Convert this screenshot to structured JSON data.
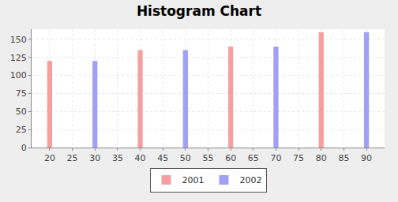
{
  "chart_data": {
    "type": "bar",
    "title": "Histogram Chart",
    "x": [
      20,
      30,
      40,
      50,
      60,
      70,
      80,
      90
    ],
    "series": [
      {
        "name": "2001",
        "color": "#f4a0a0",
        "values": [
          120,
          null,
          135,
          null,
          140,
          null,
          160,
          null
        ]
      },
      {
        "name": "2002",
        "color": "#a0a0f4",
        "values": [
          null,
          120,
          null,
          135,
          null,
          140,
          null,
          160
        ]
      }
    ],
    "xlim": [
      16,
      94
    ],
    "xticks": [
      20,
      25,
      30,
      35,
      40,
      45,
      50,
      55,
      60,
      65,
      70,
      75,
      80,
      85,
      90
    ],
    "ylim": [
      0,
      164
    ],
    "yticks": [
      0,
      25,
      50,
      75,
      100,
      125,
      150
    ],
    "grid": true,
    "legend": "bottom"
  }
}
